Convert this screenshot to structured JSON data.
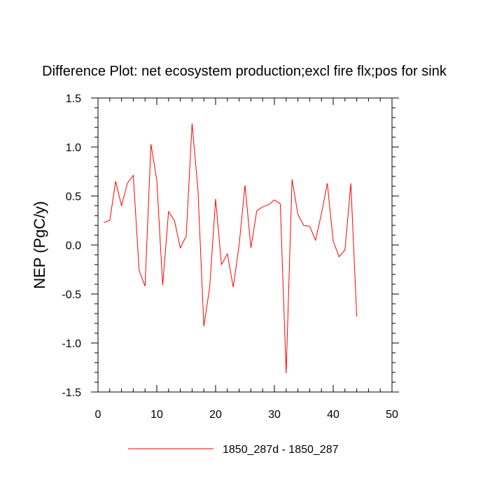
{
  "chart_data": {
    "type": "line",
    "title": "Difference Plot: net ecosystem production;excl fire flx;pos for sink",
    "xlabel": "",
    "ylabel": "NEP  (PgC/y)",
    "xlim": [
      0,
      50
    ],
    "ylim": [
      -1.5,
      1.5
    ],
    "xticks": [
      0,
      10,
      20,
      30,
      40,
      50
    ],
    "yticks": [
      -1.5,
      -1.0,
      -0.5,
      0.0,
      0.5,
      1.0,
      1.5
    ],
    "x_tick_labels": [
      "0",
      "10",
      "20",
      "30",
      "40",
      "50"
    ],
    "y_tick_labels": [
      "-1.5",
      "-1.0",
      "-0.5",
      "0.0",
      "0.5",
      "1.0",
      "1.5"
    ],
    "grid": false,
    "legend_position": "bottom-center",
    "series": [
      {
        "name": "1850_287d - 1850_287",
        "color": "#ff0000",
        "x": [
          1,
          2,
          3,
          4,
          5,
          6,
          7,
          8,
          9,
          10,
          11,
          12,
          13,
          14,
          15,
          16,
          17,
          18,
          19,
          20,
          21,
          22,
          23,
          24,
          25,
          26,
          27,
          28,
          29,
          30,
          31,
          32,
          33,
          34,
          35,
          36,
          37,
          38,
          39,
          40,
          41,
          42,
          43,
          44
        ],
        "values": [
          0.23,
          0.25,
          0.65,
          0.4,
          0.63,
          0.71,
          -0.26,
          -0.42,
          1.03,
          0.66,
          -0.41,
          0.34,
          0.25,
          -0.03,
          0.09,
          1.24,
          0.56,
          -0.83,
          -0.43,
          0.47,
          -0.2,
          -0.09,
          -0.43,
          0.0,
          0.61,
          -0.03,
          0.35,
          0.39,
          0.41,
          0.46,
          0.42,
          -1.31,
          0.67,
          0.31,
          0.2,
          0.19,
          0.05,
          0.32,
          0.63,
          0.04,
          -0.12,
          -0.05,
          0.63,
          -0.73
        ]
      }
    ]
  }
}
